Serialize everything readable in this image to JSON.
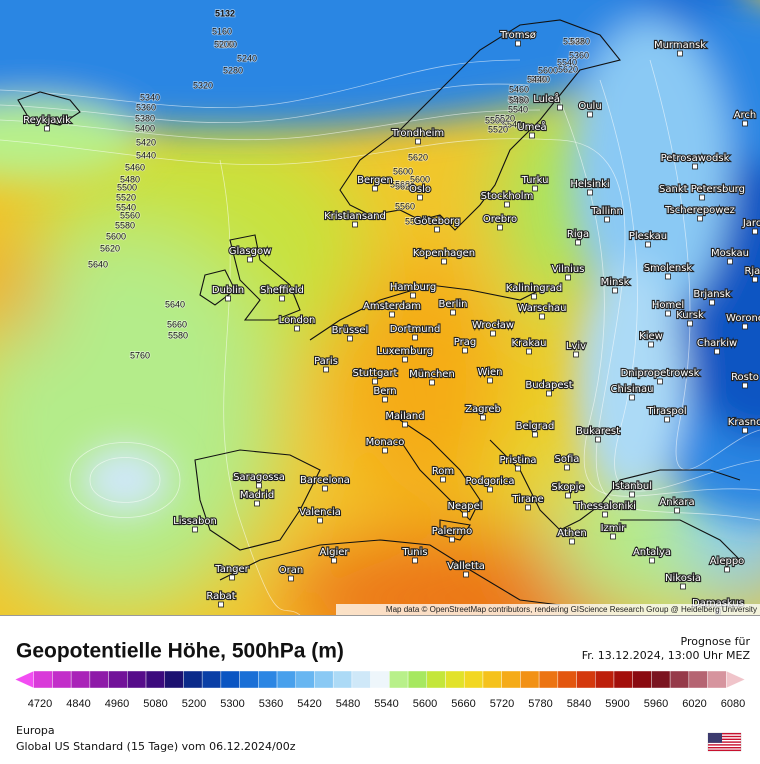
{
  "map": {
    "attribution": "Map data © OpenStreetMap contributors, rendering GIScience Research Group @ Heidelberg University",
    "contour_labels": [
      5132,
      5160,
      5180,
      5200,
      5240,
      5280,
      5320,
      5340,
      5360,
      5380,
      5400,
      5420,
      5440,
      5460,
      5480,
      5500,
      5520,
      5540,
      5560,
      5580,
      5600,
      5620,
      5640,
      5600,
      5620,
      5580,
      5560,
      5540,
      5520,
      5540,
      5560,
      5580,
      5600,
      5620,
      5340,
      5360,
      5380,
      5440,
      5460,
      5480,
      5500,
      5520,
      5540,
      5560,
      5600,
      5620,
      5640,
      5660,
      5580,
      5760
    ],
    "cities": [
      "Tromsø",
      "Murmansk",
      "Luleå",
      "Oulu",
      "Umeå",
      "Trondheim",
      "Arch",
      "Petrosawodsk",
      "Reykjavik",
      "Bergen",
      "Oslo",
      "Turku",
      "Helsinki",
      "Sankt Petersburg",
      "Stockholm",
      "Orebro",
      "Tallinn",
      "Tscherepowez",
      "Jaros",
      "Kristiansand",
      "Göteborg",
      "Riga",
      "Pleskau",
      "Glasgow",
      "Kopenhagen",
      "Moskau",
      "Rjas",
      "Vilnius",
      "Minsk",
      "Smolensk",
      "Dublin",
      "Sheffield",
      "Hamburg",
      "Kaliningrad",
      "Brjansk",
      "Berlin",
      "Amsterdam",
      "Homel",
      "London",
      "Warschau",
      "Kursk",
      "Worone",
      "Brüssel",
      "Dortmund",
      "Wrocław",
      "Kiew",
      "Charkiw",
      "Prag",
      "Krakau",
      "Lviv",
      "Luxemburg",
      "Paris",
      "Stuttgart",
      "München",
      "Wien",
      "Dnipropetrowsk",
      "Rosto",
      "Budapest",
      "Chisinau",
      "Bern",
      "Zagreb",
      "Tiraspol",
      "Mailand",
      "Krasno",
      "Belgrad",
      "Bukarest",
      "Monaco",
      "Pristina",
      "Sofia",
      "Saragossa",
      "Barcelona",
      "Rom",
      "Podgorica",
      "Istanbul",
      "Madrid",
      "Skopje",
      "Tirane",
      "Ankara",
      "Thessaloniki",
      "Valencia",
      "Lissabon",
      "Neapel",
      "Izmir",
      "Athen",
      "Palermo",
      "Algier",
      "Tunis",
      "Antalya",
      "Aleppo",
      "Valletta",
      "Tanger",
      "Oran",
      "Nikosia",
      "Rabat",
      "Damaskus"
    ]
  },
  "legend": {
    "title": "Geopotentielle Höhe, 500hPa (m)",
    "ticks": [
      4720,
      4840,
      4960,
      5080,
      5200,
      5300,
      5360,
      5420,
      5480,
      5540,
      5600,
      5660,
      5720,
      5780,
      5840,
      5900,
      5960,
      6020,
      6080
    ],
    "colors": [
      "#f24df2",
      "#d93ad9",
      "#c22ec9",
      "#a923b8",
      "#8e1aa8",
      "#721299",
      "#560c8a",
      "#3c0a7d",
      "#1c1170",
      "#0b2a8a",
      "#0a3fa6",
      "#0b55c2",
      "#1a6fd6",
      "#2c86e3",
      "#48a0ec",
      "#68b6f1",
      "#8ac9f4",
      "#acdaf6",
      "#cfe8f8",
      "#eef6fb",
      "#b8f08a",
      "#a6e860",
      "#c4e63a",
      "#e2e22a",
      "#f2d722",
      "#f5c21c",
      "#f5ab18",
      "#f29115",
      "#ec7412",
      "#e3560f",
      "#d4380d",
      "#bd1f0b",
      "#a30f0b",
      "#8a0a10",
      "#7b1420",
      "#963a4a",
      "#b56472",
      "#d6949e",
      "#f0c4ca"
    ]
  },
  "forecast": {
    "label": "Prognose für",
    "time": "Fr. 13.12.2024, 13:00 Uhr MEZ"
  },
  "footer": {
    "region": "Europa",
    "model": "Global US Standard (15 Tage) vom  06.12.2024/00z"
  }
}
